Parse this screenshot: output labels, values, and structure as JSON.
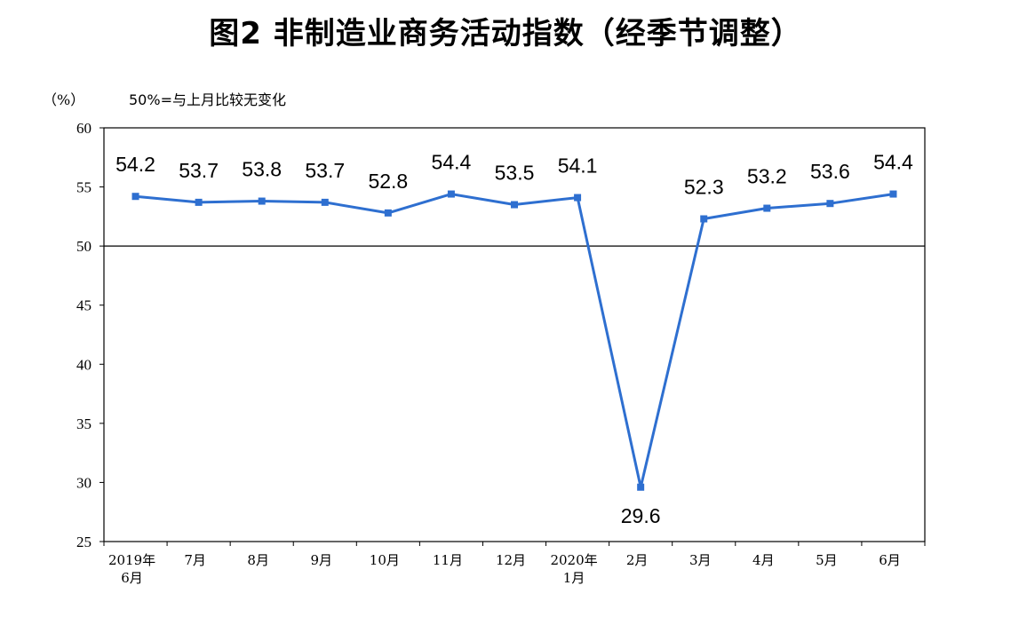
{
  "title": "图2  非制造业商务活动指数（经季节调整）",
  "unit_label": "（%）",
  "reference_note": "50%=与上月比较无变化",
  "colors": {
    "series": "#2e6fd0",
    "axis": "#000000",
    "background": "#ffffff"
  },
  "chart_data": {
    "type": "line",
    "categories": [
      [
        "2019年",
        "6月"
      ],
      [
        "7月"
      ],
      [
        "8月"
      ],
      [
        "9月"
      ],
      [
        "10月"
      ],
      [
        "11月"
      ],
      [
        "12月"
      ],
      [
        "2020年",
        "1月"
      ],
      [
        "2月"
      ],
      [
        "3月"
      ],
      [
        "4月"
      ],
      [
        "5月"
      ],
      [
        "6月"
      ]
    ],
    "values": [
      54.2,
      53.7,
      53.8,
      53.7,
      52.8,
      54.4,
      53.5,
      54.1,
      29.6,
      52.3,
      53.2,
      53.6,
      54.4
    ],
    "value_labels": [
      "54.2",
      "53.7",
      "53.8",
      "53.7",
      "52.8",
      "54.4",
      "53.5",
      "54.1",
      "29.6",
      "52.3",
      "53.2",
      "53.6",
      "54.4"
    ],
    "ylim": [
      25,
      60
    ],
    "yticks": [
      25,
      30,
      35,
      40,
      45,
      50,
      55,
      60
    ],
    "reference_line": 50,
    "grid": false,
    "legend": false
  }
}
